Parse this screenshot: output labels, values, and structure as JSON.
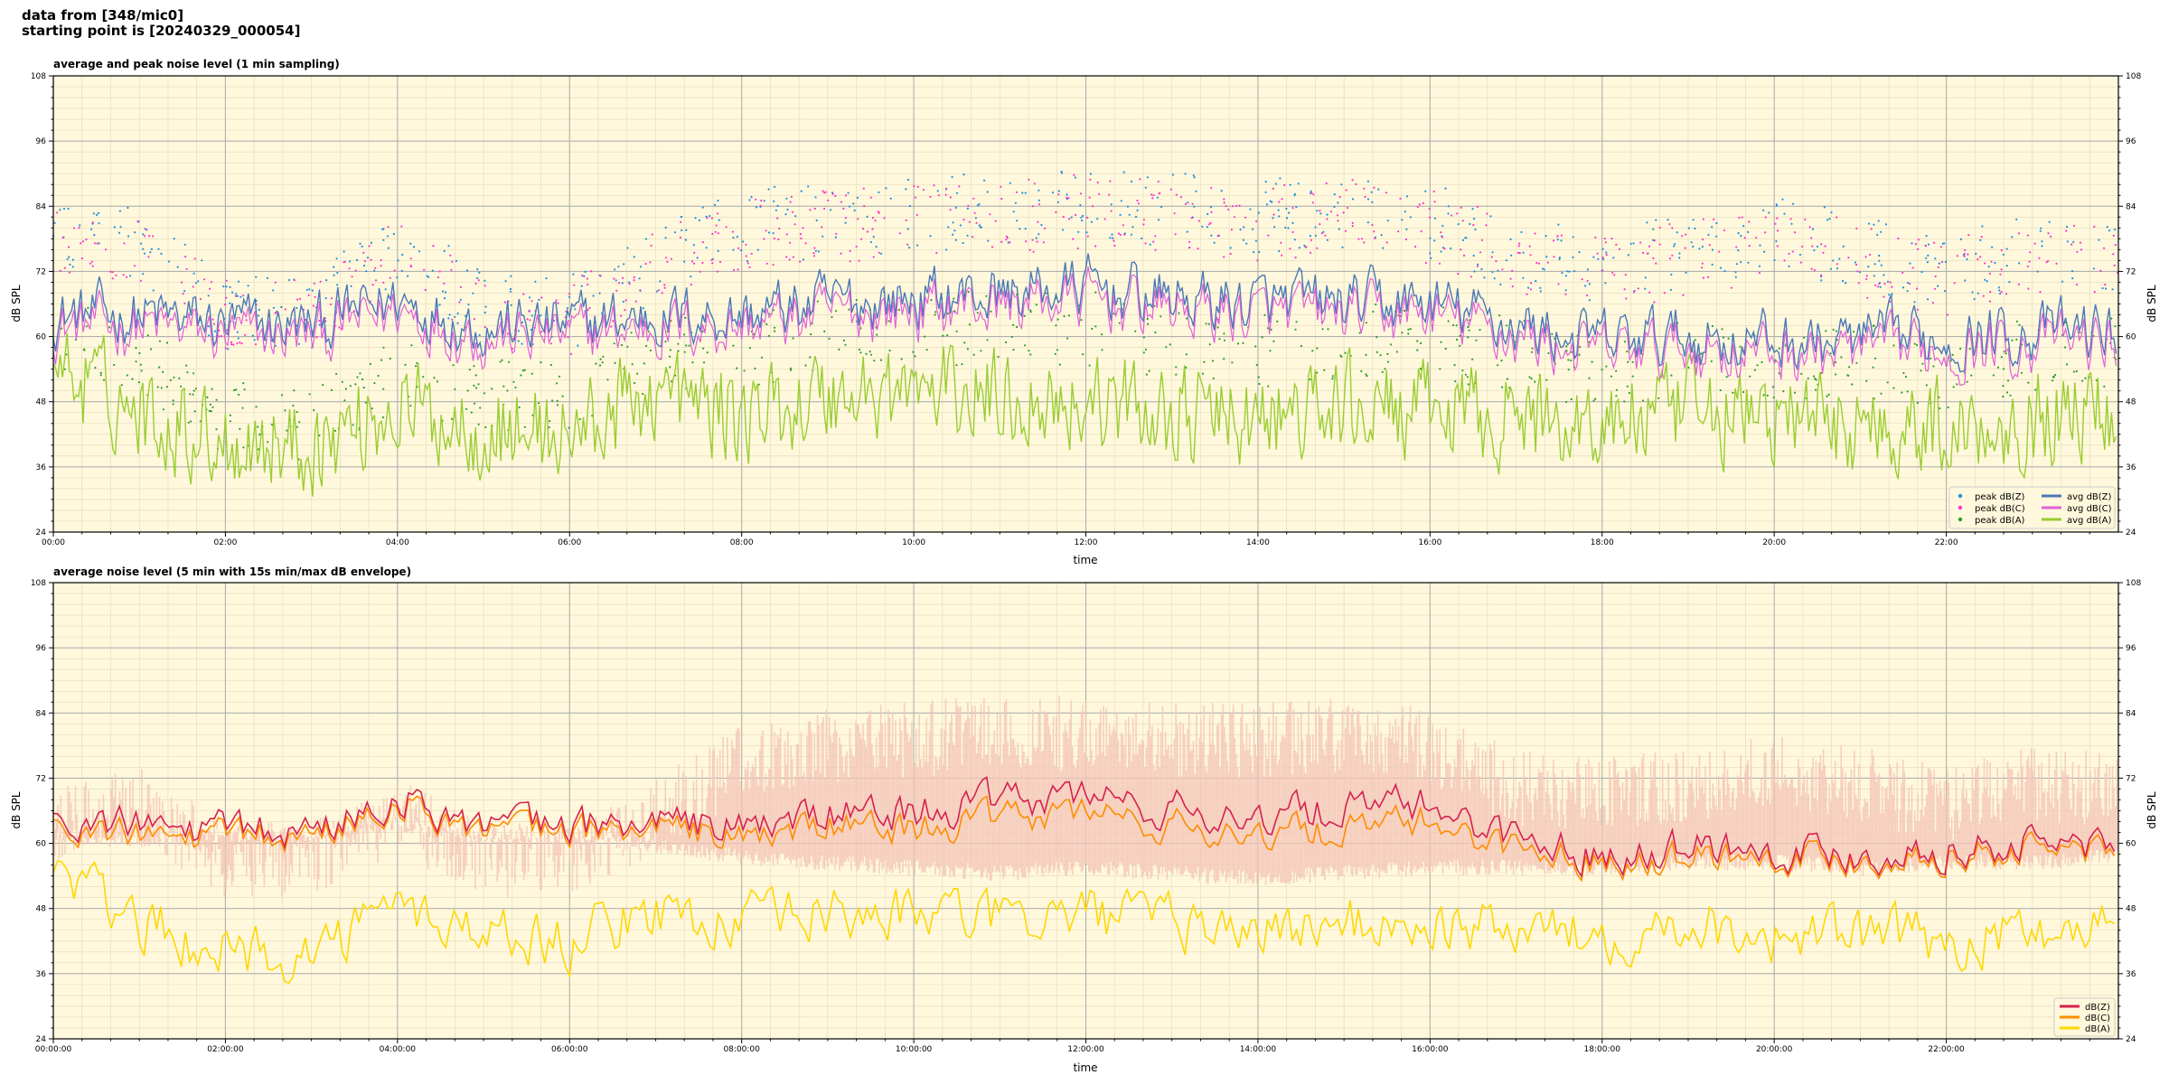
{
  "header": {
    "line1": "data from [348/mic0]",
    "line2": "starting point is [20240329_000054]"
  },
  "colors": {
    "plot_bg": "#fff8dc",
    "peak_z": "#1f8fe0",
    "peak_c": "#ff33cc",
    "peak_a": "#2a9d2a",
    "avg_z": "#4a78b8",
    "avg_c": "#e060d8",
    "avg_a": "#9acd32",
    "env": "#f5c6b8",
    "dbz": "#d62050",
    "dbc": "#ff8c00",
    "dba": "#ffd700"
  },
  "top": {
    "title": "average and peak noise level (1 min sampling)",
    "xlabel": "time",
    "ylabel": "dB SPL",
    "ylabel_right": "dB SPL",
    "yticks": [
      "24",
      "36",
      "48",
      "60",
      "72",
      "84",
      "96",
      "108"
    ],
    "xticks": [
      "00:00",
      "02:00",
      "04:00",
      "06:00",
      "08:00",
      "10:00",
      "12:00",
      "14:00",
      "16:00",
      "18:00",
      "20:00",
      "22:00"
    ],
    "legend": {
      "peak_z": "peak dB(Z)",
      "peak_c": "peak dB(C)",
      "peak_a": "peak dB(A)",
      "avg_z": "avg dB(Z)",
      "avg_c": "avg dB(C)",
      "avg_a": "avg dB(A)"
    }
  },
  "bottom": {
    "title": "average noise level (5 min with 15s min/max dB envelope)",
    "xlabel": "time",
    "ylabel": "dB SPL",
    "ylabel_right": "dB SPL",
    "yticks": [
      "24",
      "36",
      "48",
      "60",
      "72",
      "84",
      "96",
      "108"
    ],
    "xticks": [
      "00:00:00",
      "02:00:00",
      "04:00:00",
      "06:00:00",
      "08:00:00",
      "10:00:00",
      "12:00:00",
      "14:00:00",
      "16:00:00",
      "18:00:00",
      "20:00:00",
      "22:00:00"
    ],
    "legend": {
      "dbz": "dB(Z)",
      "dbc": "dB(C)",
      "dba": "dB(A)"
    }
  },
  "chart_data": [
    {
      "type": "line",
      "title": "average and peak noise level (1 min sampling)",
      "xlabel": "time",
      "ylabel": "dB SPL",
      "xlim": [
        "00:00",
        "24:00"
      ],
      "ylim": [
        24,
        108
      ],
      "grid": true,
      "legend_position": "lower-right",
      "x": [
        "00:00",
        "01:00",
        "02:00",
        "03:00",
        "04:00",
        "05:00",
        "06:00",
        "07:00",
        "08:00",
        "09:00",
        "10:00",
        "11:00",
        "12:00",
        "13:00",
        "14:00",
        "15:00",
        "16:00",
        "17:00",
        "18:00",
        "19:00",
        "20:00",
        "21:00",
        "22:00",
        "23:00",
        "24:00"
      ],
      "series": [
        {
          "name": "avg dB(Z)",
          "kind": "line",
          "values": [
            64,
            64,
            62,
            62,
            67,
            62,
            62,
            64,
            64,
            66,
            67,
            68,
            69,
            67,
            66,
            66,
            66,
            62,
            59,
            60,
            59,
            59,
            60,
            61,
            61
          ]
        },
        {
          "name": "avg dB(C)",
          "kind": "line",
          "values": [
            63,
            62,
            60,
            60,
            65,
            61,
            61,
            63,
            62,
            64,
            64,
            65,
            66,
            64,
            62,
            62,
            63,
            60,
            57,
            58,
            57,
            57,
            58,
            59,
            59
          ]
        },
        {
          "name": "avg dB(A)",
          "kind": "line",
          "values": [
            55,
            46,
            41,
            40,
            47,
            43,
            42,
            50,
            45,
            49,
            50,
            49,
            48,
            46,
            44,
            47,
            46,
            45,
            44,
            46,
            45,
            44,
            43,
            45,
            47
          ]
        },
        {
          "name": "peak dB(Z)",
          "kind": "scatter",
          "values": [
            76,
            76,
            63,
            63,
            75,
            64,
            63,
            72,
            79,
            80,
            81,
            82,
            83,
            82,
            81,
            82,
            80,
            74,
            72,
            74,
            78,
            74,
            70,
            75,
            73
          ]
        },
        {
          "name": "peak dB(C)",
          "kind": "scatter",
          "values": [
            75,
            75,
            62,
            62,
            74,
            63,
            62,
            71,
            77,
            79,
            80,
            80,
            82,
            80,
            79,
            81,
            79,
            73,
            70,
            73,
            76,
            73,
            69,
            74,
            72
          ]
        },
        {
          "name": "peak dB(A)",
          "kind": "scatter",
          "values": [
            60,
            55,
            44,
            42,
            52,
            48,
            47,
            56,
            55,
            60,
            60,
            60,
            60,
            58,
            56,
            58,
            58,
            55,
            52,
            55,
            54,
            54,
            52,
            55,
            55
          ]
        }
      ]
    },
    {
      "type": "line",
      "title": "average noise level (5 min with 15s min/max dB envelope)",
      "xlabel": "time",
      "ylabel": "dB SPL",
      "xlim": [
        "00:00:00",
        "24:00:00"
      ],
      "ylim": [
        24,
        108
      ],
      "grid": true,
      "legend_position": "lower-right",
      "x": [
        "00:00:00",
        "01:00:00",
        "02:00:00",
        "03:00:00",
        "04:00:00",
        "05:00:00",
        "06:00:00",
        "07:00:00",
        "08:00:00",
        "09:00:00",
        "10:00:00",
        "11:00:00",
        "12:00:00",
        "13:00:00",
        "14:00:00",
        "15:00:00",
        "16:00:00",
        "17:00:00",
        "18:00:00",
        "19:00:00",
        "20:00:00",
        "21:00:00",
        "22:00:00",
        "23:00:00",
        "24:00:00"
      ],
      "series": [
        {
          "name": "dB(Z)",
          "kind": "line",
          "values": [
            64,
            63,
            62,
            62,
            69,
            63,
            63,
            64,
            63,
            65,
            66,
            67,
            69,
            66,
            65,
            66,
            67,
            61,
            58,
            60,
            59,
            58,
            59,
            60,
            60
          ]
        },
        {
          "name": "dB(C)",
          "kind": "line",
          "values": [
            63,
            61,
            61,
            61,
            68,
            62,
            62,
            63,
            61,
            63,
            63,
            64,
            66,
            63,
            62,
            62,
            64,
            59,
            57,
            58,
            58,
            57,
            58,
            59,
            59
          ]
        },
        {
          "name": "dB(A)",
          "kind": "line",
          "values": [
            55,
            45,
            40,
            40,
            48,
            44,
            42,
            48,
            45,
            47,
            47,
            46,
            47,
            45,
            44,
            45,
            45,
            44,
            43,
            46,
            43,
            43,
            42,
            44,
            46
          ]
        },
        {
          "name": "envelope max",
          "kind": "band-upper",
          "values": [
            70,
            74,
            64,
            64,
            72,
            64,
            64,
            72,
            82,
            85,
            86,
            88,
            87,
            86,
            86,
            87,
            85,
            77,
            76,
            78,
            80,
            78,
            74,
            78,
            77
          ]
        },
        {
          "name": "envelope min",
          "kind": "band-lower",
          "values": [
            60,
            59,
            60,
            60,
            62,
            60,
            60,
            58,
            56,
            55,
            54,
            53,
            54,
            53,
            52,
            53,
            54,
            54,
            54,
            55,
            55,
            54,
            55,
            55,
            56
          ]
        }
      ]
    }
  ]
}
